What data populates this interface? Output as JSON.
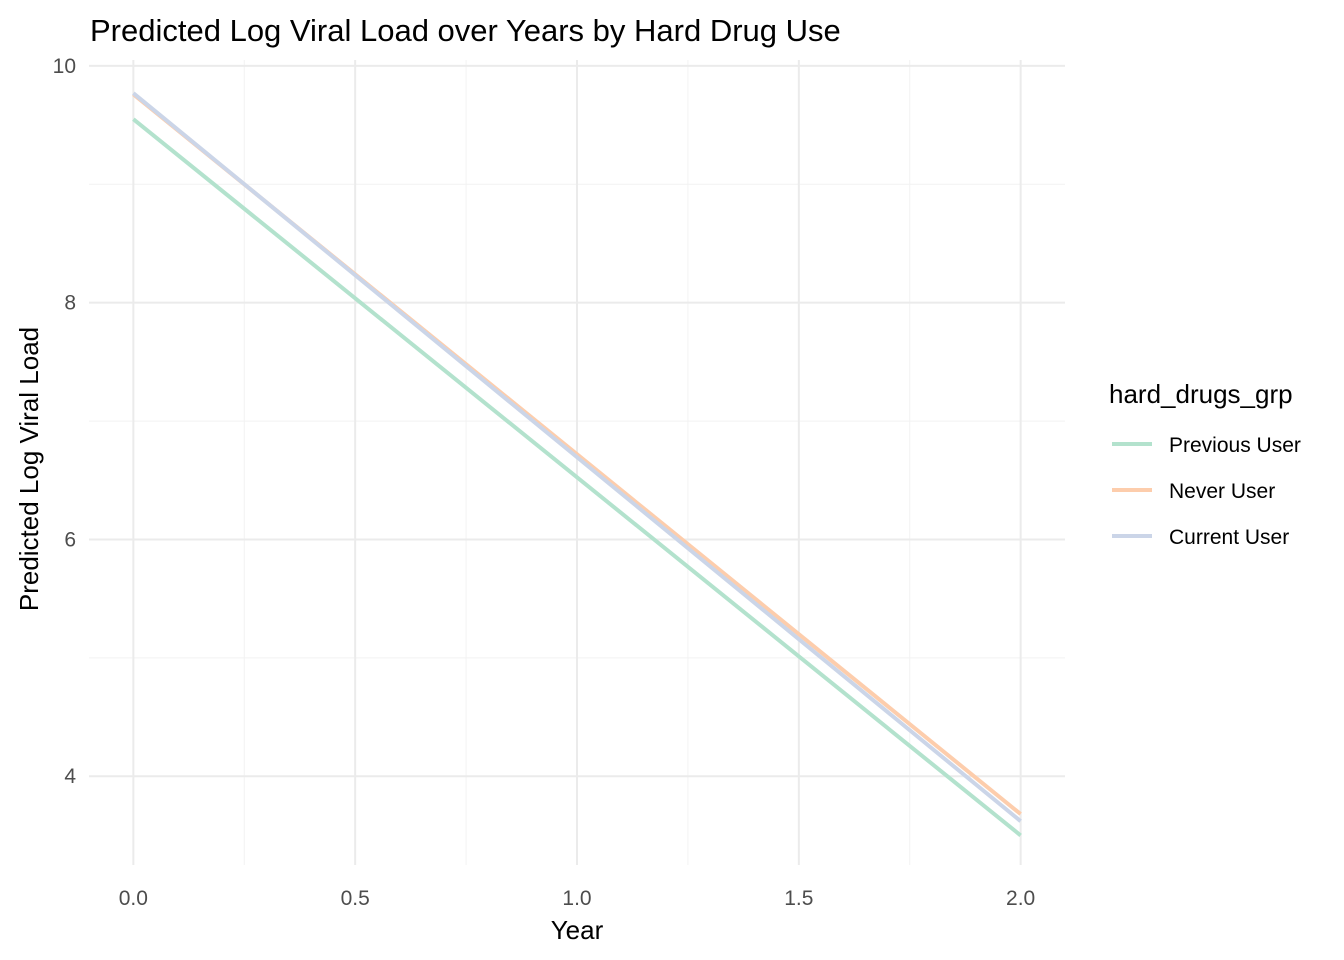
{
  "chart_data": {
    "type": "line",
    "title": "Predicted Log Viral Load over Years by Hard Drug Use",
    "xlabel": "Year",
    "ylabel": "Predicted Log Viral Load",
    "xlim": [
      -0.1,
      2.1
    ],
    "ylim": [
      3.25,
      10.05
    ],
    "x_ticks": [
      "0.0",
      "0.5",
      "1.0",
      "1.5",
      "2.0"
    ],
    "y_ticks": [
      "4",
      "6",
      "8",
      "10"
    ],
    "grid": true,
    "legend": {
      "title": "hard_drugs_grp",
      "position": "right"
    },
    "series": [
      {
        "name": "Previous User",
        "color": "#b3e2cd",
        "x": [
          0,
          2
        ],
        "y": [
          9.55,
          3.5
        ]
      },
      {
        "name": "Never User",
        "color": "#fdcdac",
        "x": [
          0,
          2
        ],
        "y": [
          9.76,
          3.68
        ]
      },
      {
        "name": "Current User",
        "color": "#cbd5e8",
        "x": [
          0,
          2
        ],
        "y": [
          9.77,
          3.62
        ]
      }
    ]
  }
}
